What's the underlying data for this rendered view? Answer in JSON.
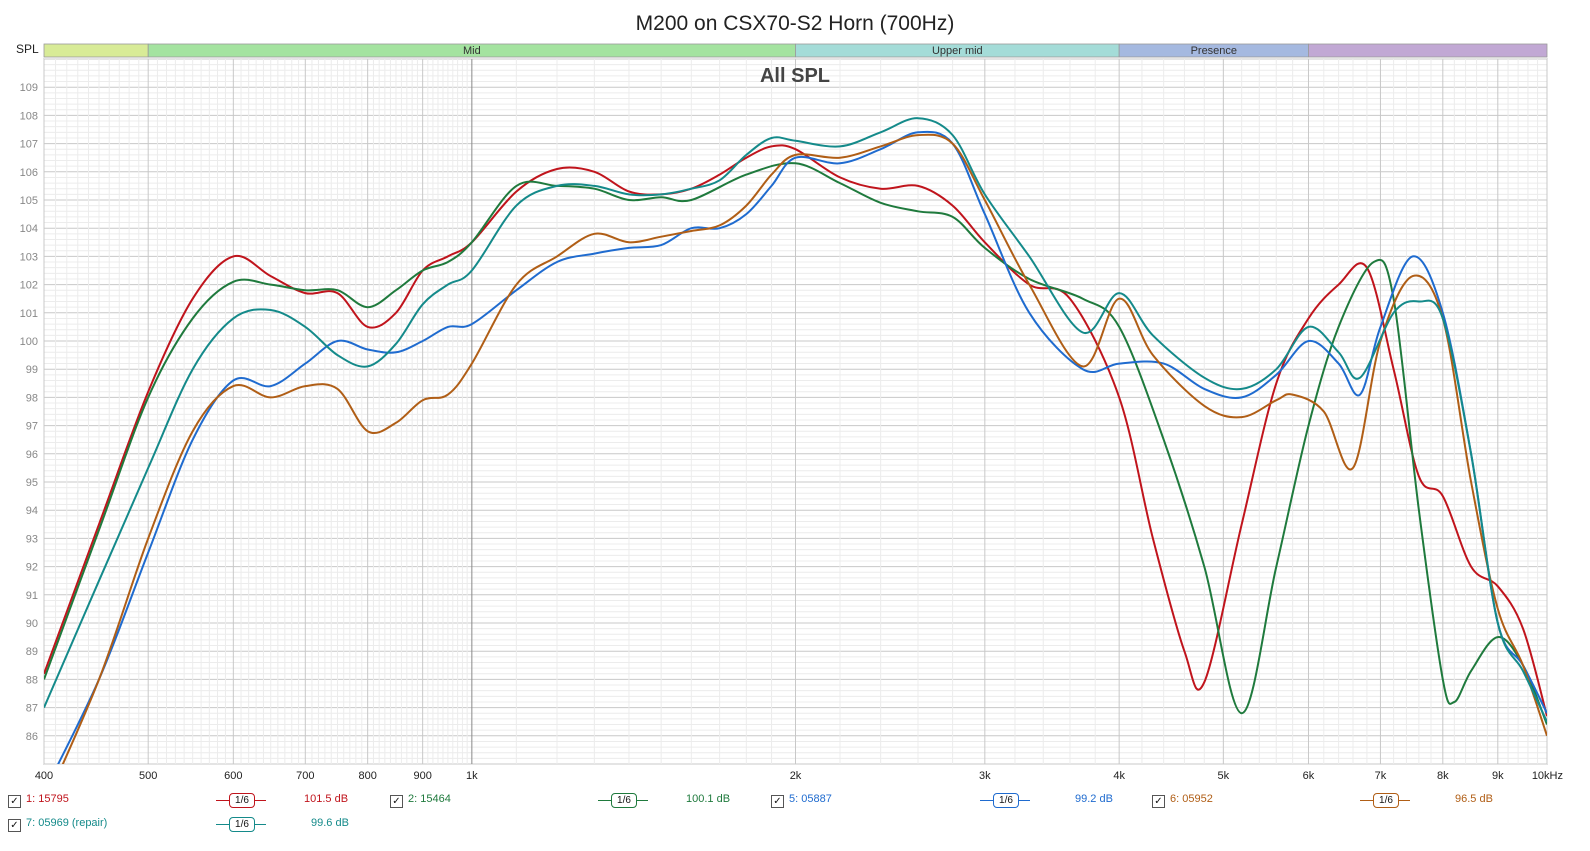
{
  "chart_data": {
    "type": "line",
    "title": "M200 on CSX70-S2 Horn (700Hz)",
    "subtitle": "All SPL",
    "ylabel": "SPL",
    "xscale": "log",
    "xlim": [
      400,
      10000
    ],
    "ylim": [
      85,
      110
    ],
    "grid": true,
    "x_ticks": [
      400,
      500,
      600,
      700,
      800,
      900,
      1000,
      2000,
      3000,
      4000,
      5000,
      6000,
      7000,
      8000,
      9000,
      10000
    ],
    "x_tick_labels": [
      "400",
      "500",
      "600",
      "700",
      "800",
      "900",
      "1k",
      "2k",
      "3k",
      "4k",
      "5k",
      "6k",
      "7k",
      "8k",
      "9k",
      "10kHz"
    ],
    "y_ticks": [
      86,
      87,
      88,
      89,
      90,
      91,
      92,
      93,
      94,
      95,
      96,
      97,
      98,
      99,
      100,
      101,
      102,
      103,
      104,
      105,
      106,
      107,
      108,
      109
    ],
    "bands": [
      {
        "label": "",
        "from": 400,
        "to": 500,
        "color": "#d8eb97"
      },
      {
        "label": "Mid",
        "from": 500,
        "to": 2000,
        "color": "#a4e3a0"
      },
      {
        "label": "Upper mid",
        "from": 2000,
        "to": 4000,
        "color": "#a4dcd8"
      },
      {
        "label": "Presence",
        "from": 4000,
        "to": 6000,
        "color": "#a5b9e0"
      },
      {
        "label": "",
        "from": 6000,
        "to": 10000,
        "color": "#c1a8d4"
      }
    ],
    "series": [
      {
        "name": "1: 15795",
        "color": "#c0141c",
        "smoothing": "1/6",
        "level": "101.5 dB",
        "points": [
          [
            400,
            88.2
          ],
          [
            450,
            93.5
          ],
          [
            500,
            98.2
          ],
          [
            550,
            101.5
          ],
          [
            600,
            103.0
          ],
          [
            650,
            102.3
          ],
          [
            700,
            101.7
          ],
          [
            750,
            101.7
          ],
          [
            800,
            100.5
          ],
          [
            850,
            101.0
          ],
          [
            900,
            102.5
          ],
          [
            950,
            103.0
          ],
          [
            1000,
            103.5
          ],
          [
            1100,
            105.3
          ],
          [
            1200,
            106.1
          ],
          [
            1300,
            106.0
          ],
          [
            1400,
            105.3
          ],
          [
            1500,
            105.2
          ],
          [
            1600,
            105.4
          ],
          [
            1700,
            105.9
          ],
          [
            1800,
            106.5
          ],
          [
            1900,
            106.9
          ],
          [
            2000,
            106.8
          ],
          [
            2200,
            105.8
          ],
          [
            2400,
            105.4
          ],
          [
            2600,
            105.5
          ],
          [
            2800,
            104.8
          ],
          [
            3000,
            103.5
          ],
          [
            3300,
            102.0
          ],
          [
            3600,
            101.5
          ],
          [
            4000,
            98.0
          ],
          [
            4300,
            93.0
          ],
          [
            4600,
            89.0
          ],
          [
            4800,
            87.9
          ],
          [
            5200,
            93.5
          ],
          [
            5600,
            98.5
          ],
          [
            6000,
            100.8
          ],
          [
            6400,
            102.0
          ],
          [
            6800,
            102.6
          ],
          [
            7200,
            99.0
          ],
          [
            7600,
            95.2
          ],
          [
            8000,
            94.5
          ],
          [
            8500,
            92.0
          ],
          [
            9000,
            91.3
          ],
          [
            9500,
            89.8
          ],
          [
            10000,
            86.7
          ]
        ]
      },
      {
        "name": "2: 15464",
        "color": "#1f7a3d",
        "smoothing": "1/6",
        "level": "100.1 dB",
        "points": [
          [
            400,
            88.0
          ],
          [
            450,
            93.3
          ],
          [
            500,
            98.0
          ],
          [
            550,
            100.8
          ],
          [
            600,
            102.1
          ],
          [
            650,
            102.0
          ],
          [
            700,
            101.8
          ],
          [
            750,
            101.8
          ],
          [
            800,
            101.2
          ],
          [
            850,
            101.8
          ],
          [
            900,
            102.5
          ],
          [
            950,
            102.8
          ],
          [
            1000,
            103.5
          ],
          [
            1100,
            105.5
          ],
          [
            1200,
            105.5
          ],
          [
            1300,
            105.4
          ],
          [
            1400,
            105.0
          ],
          [
            1500,
            105.1
          ],
          [
            1600,
            105.0
          ],
          [
            1800,
            105.9
          ],
          [
            2000,
            106.3
          ],
          [
            2200,
            105.6
          ],
          [
            2400,
            104.9
          ],
          [
            2600,
            104.6
          ],
          [
            2800,
            104.4
          ],
          [
            3000,
            103.3
          ],
          [
            3300,
            102.2
          ],
          [
            3700,
            101.5
          ],
          [
            4000,
            100.5
          ],
          [
            4400,
            96.5
          ],
          [
            4800,
            92.0
          ],
          [
            5200,
            86.8
          ],
          [
            5600,
            92.0
          ],
          [
            6000,
            97.0
          ],
          [
            6400,
            100.5
          ],
          [
            6900,
            102.8
          ],
          [
            7200,
            101.5
          ],
          [
            7600,
            94.0
          ],
          [
            8000,
            88.0
          ],
          [
            8200,
            87.2
          ],
          [
            8500,
            88.3
          ],
          [
            9000,
            89.5
          ],
          [
            9500,
            88.5
          ],
          [
            10000,
            86.4
          ]
        ]
      },
      {
        "name": "5: 05887",
        "color": "#1f6bcf",
        "smoothing": "1/6",
        "level": "99.2 dB",
        "points": [
          [
            400,
            84.0
          ],
          [
            450,
            88.0
          ],
          [
            500,
            92.5
          ],
          [
            550,
            96.5
          ],
          [
            600,
            98.6
          ],
          [
            650,
            98.4
          ],
          [
            700,
            99.2
          ],
          [
            750,
            100.0
          ],
          [
            800,
            99.7
          ],
          [
            850,
            99.6
          ],
          [
            900,
            100.0
          ],
          [
            950,
            100.5
          ],
          [
            1000,
            100.6
          ],
          [
            1100,
            101.8
          ],
          [
            1200,
            102.8
          ],
          [
            1300,
            103.1
          ],
          [
            1400,
            103.3
          ],
          [
            1500,
            103.4
          ],
          [
            1600,
            104.0
          ],
          [
            1700,
            104.0
          ],
          [
            1800,
            104.5
          ],
          [
            1900,
            105.5
          ],
          [
            2000,
            106.5
          ],
          [
            2200,
            106.3
          ],
          [
            2400,
            106.8
          ],
          [
            2600,
            107.4
          ],
          [
            2800,
            107.0
          ],
          [
            3000,
            104.5
          ],
          [
            3300,
            101.0
          ],
          [
            3700,
            99.0
          ],
          [
            4000,
            99.2
          ],
          [
            4400,
            99.2
          ],
          [
            4800,
            98.3
          ],
          [
            5200,
            98.0
          ],
          [
            5600,
            98.8
          ],
          [
            6000,
            100.0
          ],
          [
            6400,
            99.2
          ],
          [
            6700,
            98.1
          ],
          [
            7000,
            100.5
          ],
          [
            7500,
            103.0
          ],
          [
            8000,
            101.0
          ],
          [
            8500,
            96.0
          ],
          [
            9000,
            90.0
          ],
          [
            9500,
            88.5
          ],
          [
            10000,
            86.8
          ]
        ]
      },
      {
        "name": "6: 05952",
        "color": "#b05e16",
        "smoothing": "1/6",
        "level": "96.5 dB",
        "points": [
          [
            400,
            83.5
          ],
          [
            450,
            88.0
          ],
          [
            500,
            93.0
          ],
          [
            550,
            96.8
          ],
          [
            600,
            98.4
          ],
          [
            650,
            98.0
          ],
          [
            700,
            98.4
          ],
          [
            750,
            98.3
          ],
          [
            800,
            96.8
          ],
          [
            850,
            97.1
          ],
          [
            900,
            97.9
          ],
          [
            950,
            98.1
          ],
          [
            1000,
            99.2
          ],
          [
            1100,
            102.0
          ],
          [
            1200,
            103.0
          ],
          [
            1300,
            103.8
          ],
          [
            1400,
            103.5
          ],
          [
            1500,
            103.7
          ],
          [
            1600,
            103.9
          ],
          [
            1700,
            104.1
          ],
          [
            1800,
            104.8
          ],
          [
            1900,
            105.9
          ],
          [
            2000,
            106.6
          ],
          [
            2200,
            106.5
          ],
          [
            2400,
            106.9
          ],
          [
            2600,
            107.3
          ],
          [
            2800,
            107.0
          ],
          [
            3000,
            105.0
          ],
          [
            3300,
            102.0
          ],
          [
            3700,
            99.1
          ],
          [
            4000,
            101.5
          ],
          [
            4300,
            99.5
          ],
          [
            4800,
            97.7
          ],
          [
            5200,
            97.3
          ],
          [
            5600,
            97.9
          ],
          [
            5800,
            98.1
          ],
          [
            6200,
            97.5
          ],
          [
            6600,
            95.5
          ],
          [
            7000,
            100.0
          ],
          [
            7500,
            102.3
          ],
          [
            8000,
            100.8
          ],
          [
            8500,
            95.0
          ],
          [
            9000,
            90.5
          ],
          [
            9500,
            88.5
          ],
          [
            10000,
            86.0
          ]
        ]
      },
      {
        "name": "7: 05969 (repair)",
        "color": "#148a8a",
        "smoothing": "1/6",
        "level": "99.6 dB",
        "points": [
          [
            400,
            87.0
          ],
          [
            450,
            91.5
          ],
          [
            500,
            95.5
          ],
          [
            550,
            99.0
          ],
          [
            600,
            100.8
          ],
          [
            650,
            101.1
          ],
          [
            700,
            100.5
          ],
          [
            750,
            99.5
          ],
          [
            800,
            99.1
          ],
          [
            850,
            99.9
          ],
          [
            900,
            101.3
          ],
          [
            950,
            102.0
          ],
          [
            1000,
            102.5
          ],
          [
            1100,
            104.8
          ],
          [
            1200,
            105.5
          ],
          [
            1300,
            105.5
          ],
          [
            1400,
            105.2
          ],
          [
            1500,
            105.2
          ],
          [
            1600,
            105.4
          ],
          [
            1700,
            105.7
          ],
          [
            1800,
            106.6
          ],
          [
            1900,
            107.2
          ],
          [
            2000,
            107.1
          ],
          [
            2200,
            106.9
          ],
          [
            2400,
            107.4
          ],
          [
            2600,
            107.9
          ],
          [
            2800,
            107.3
          ],
          [
            3000,
            105.2
          ],
          [
            3300,
            103.0
          ],
          [
            3700,
            100.3
          ],
          [
            4000,
            101.7
          ],
          [
            4300,
            100.2
          ],
          [
            4800,
            98.7
          ],
          [
            5200,
            98.3
          ],
          [
            5600,
            99.0
          ],
          [
            6000,
            100.5
          ],
          [
            6400,
            99.6
          ],
          [
            6700,
            98.7
          ],
          [
            7200,
            101.0
          ],
          [
            7600,
            101.4
          ],
          [
            8000,
            100.8
          ],
          [
            8500,
            96.0
          ],
          [
            9000,
            90.0
          ],
          [
            9500,
            88.3
          ],
          [
            10000,
            86.5
          ]
        ]
      }
    ]
  },
  "legend": {
    "entries": [
      {
        "name": "1: 15795",
        "smoothing": "1/6",
        "level": "101.5 dB",
        "color": "#c0141c"
      },
      {
        "name": "2: 15464",
        "smoothing": "1/6",
        "level": "100.1 dB",
        "color": "#1f7a3d"
      },
      {
        "name": "5: 05887",
        "smoothing": "1/6",
        "level": "99.2 dB",
        "color": "#1f6bcf"
      },
      {
        "name": "6: 05952",
        "smoothing": "1/6",
        "level": "96.5 dB",
        "color": "#b05e16"
      },
      {
        "name": "7: 05969 (repair)",
        "smoothing": "1/6",
        "level": "99.6 dB",
        "color": "#148a8a"
      }
    ]
  }
}
